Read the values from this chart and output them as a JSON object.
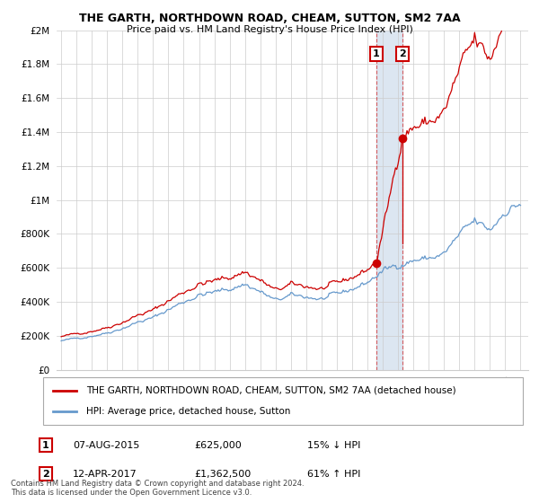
{
  "title": "THE GARTH, NORTHDOWN ROAD, CHEAM, SUTTON, SM2 7AA",
  "subtitle": "Price paid vs. HM Land Registry's House Price Index (HPI)",
  "footer": "Contains HM Land Registry data © Crown copyright and database right 2024.\nThis data is licensed under the Open Government Licence v3.0.",
  "legend_entry1": "THE GARTH, NORTHDOWN ROAD, CHEAM, SUTTON, SM2 7AA (detached house)",
  "legend_entry2": "HPI: Average price, detached house, Sutton",
  "sale1_date": "07-AUG-2015",
  "sale1_price": "£625,000",
  "sale1_hpi": "15% ↓ HPI",
  "sale2_date": "12-APR-2017",
  "sale2_price": "£1,362,500",
  "sale2_hpi": "61% ↑ HPI",
  "sale1_year": 2015.583,
  "sale1_value": 625000,
  "sale2_year": 2017.28,
  "sale2_value": 1362500,
  "hpi_color": "#6699cc",
  "price_color": "#cc0000",
  "highlight_color": "#dce6f1",
  "grid_color": "#cccccc",
  "background_color": "#ffffff",
  "ylim": [
    0,
    2000000
  ],
  "yticks": [
    0,
    200000,
    400000,
    600000,
    800000,
    1000000,
    1200000,
    1400000,
    1600000,
    1800000,
    2000000
  ],
  "xlim_start": 1994.7,
  "xlim_end": 2025.5
}
